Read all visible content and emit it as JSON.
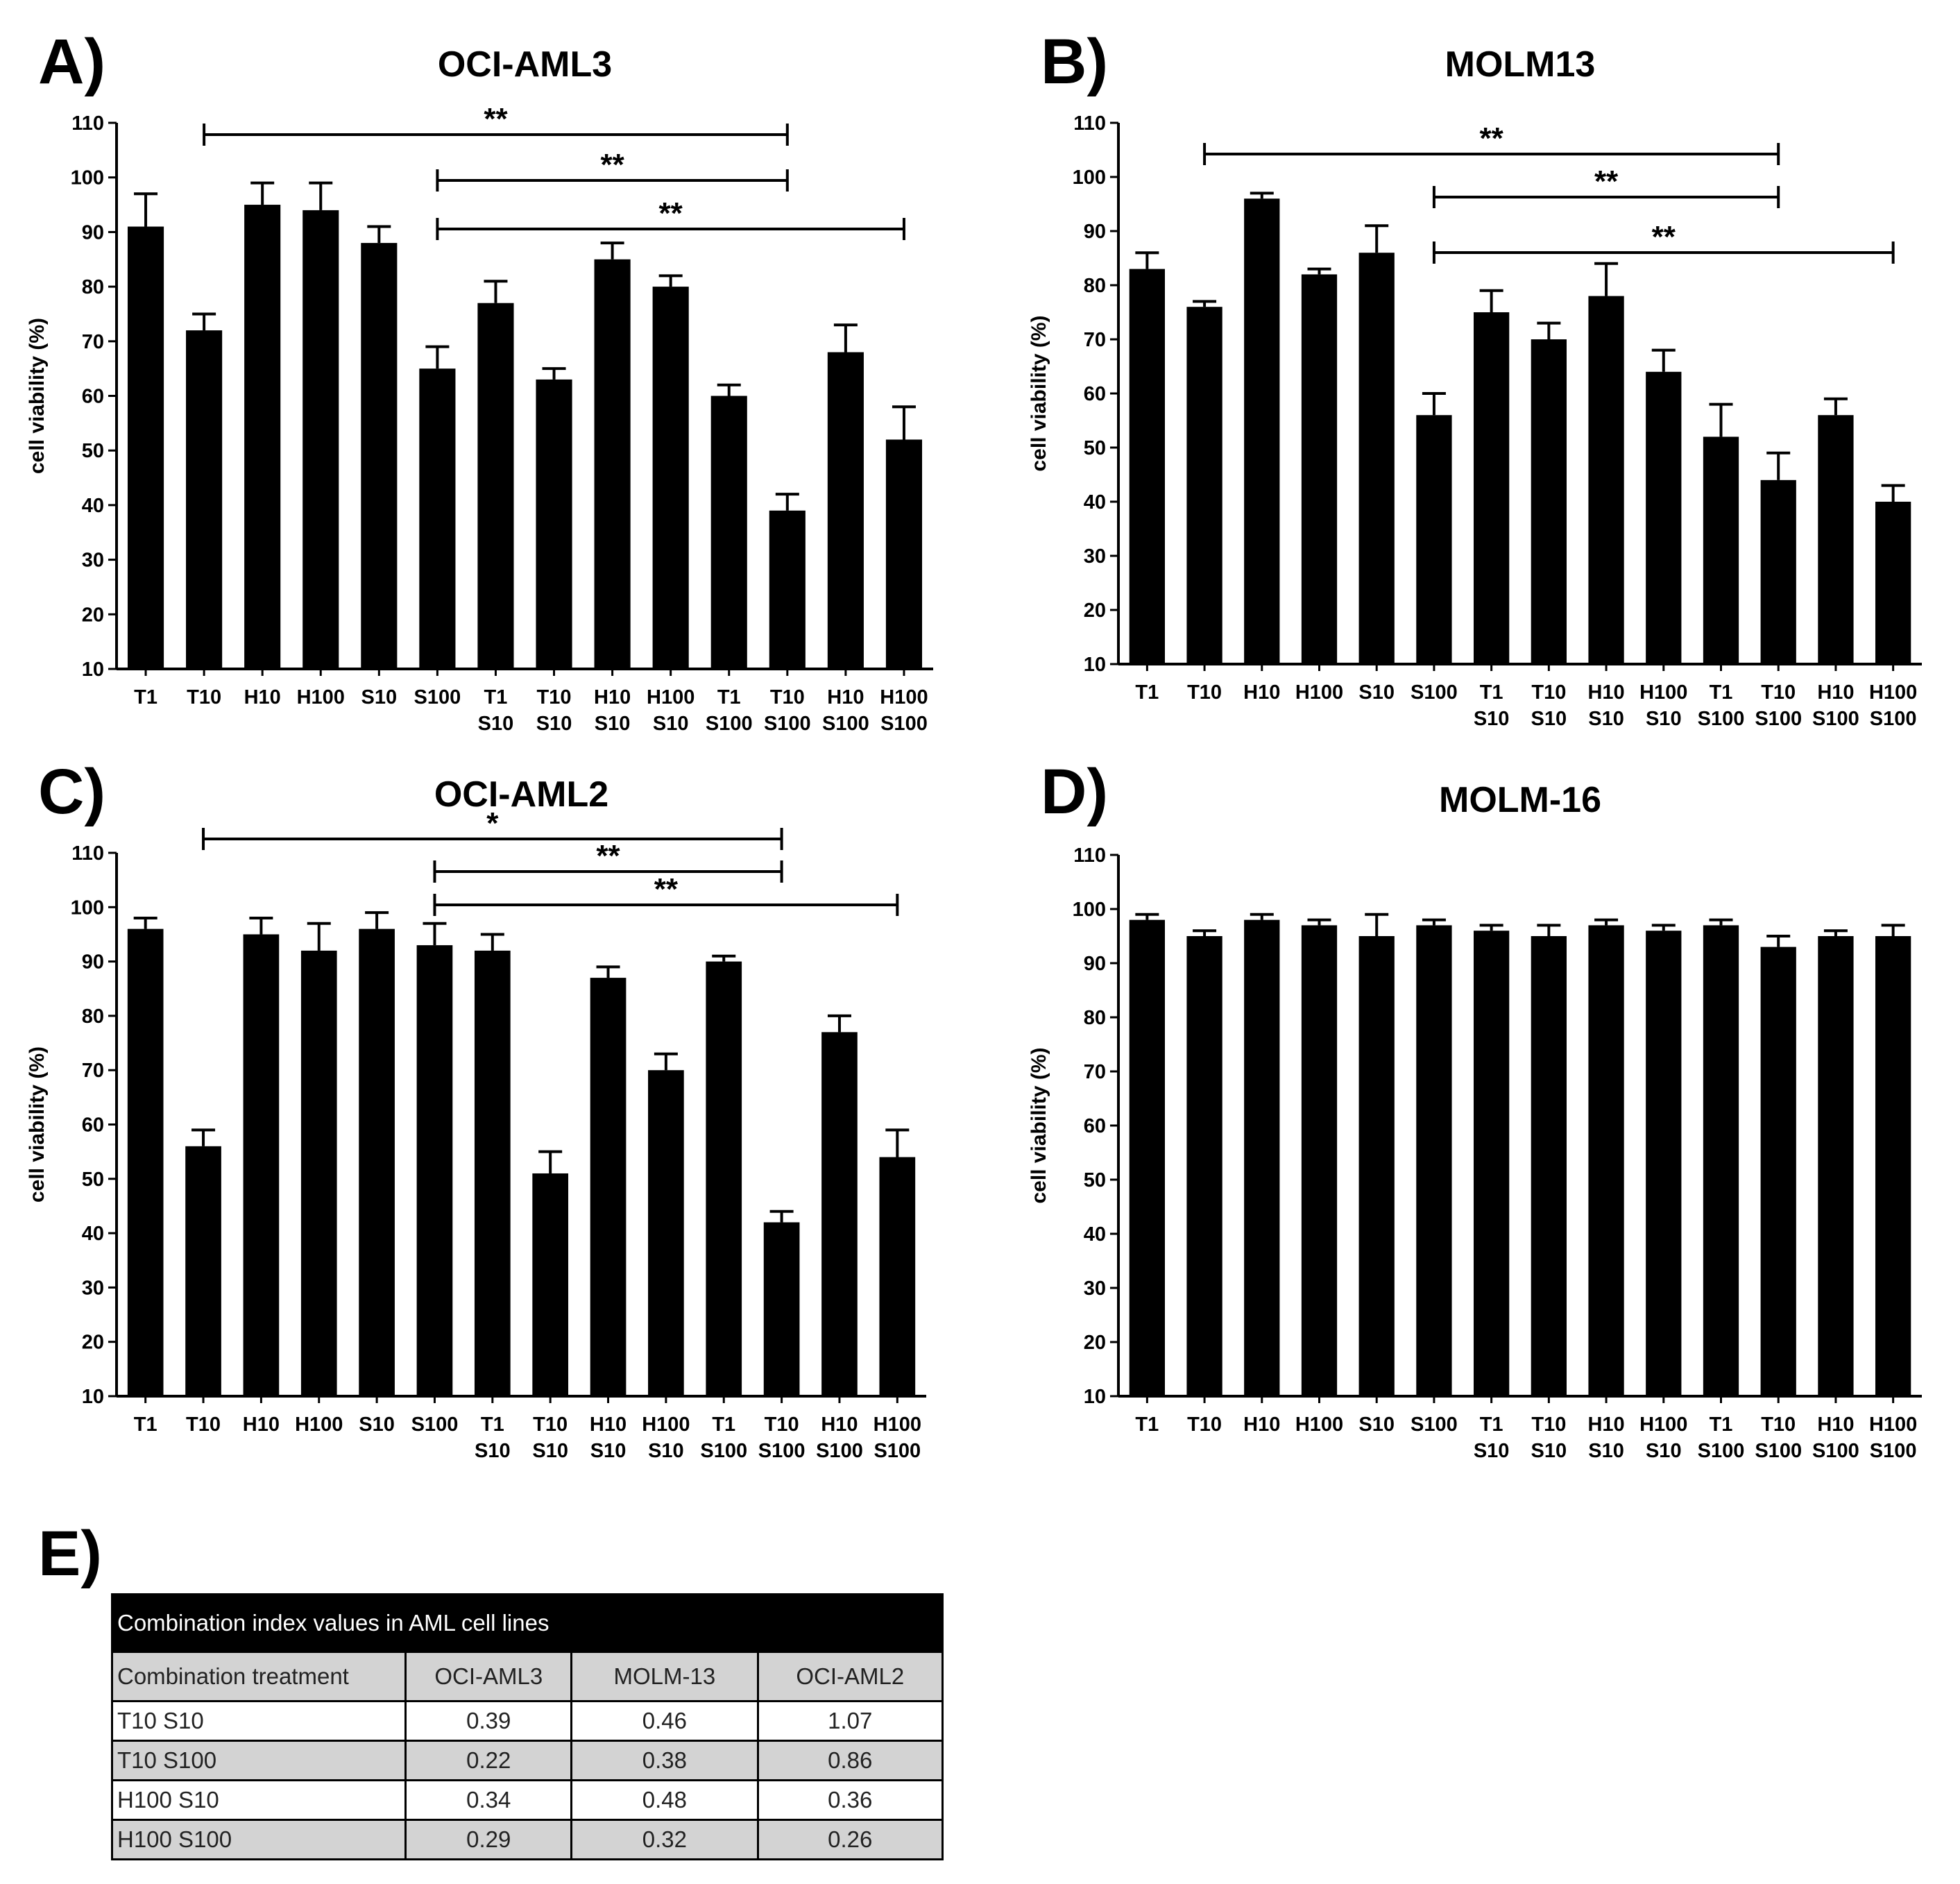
{
  "panel_letters": {
    "a": "A)",
    "b": "B)",
    "c": "C)",
    "d": "D)",
    "e": "E)"
  },
  "colors": {
    "bar": "#000000",
    "axis": "#000000",
    "table_header_bg": "#000000",
    "table_shade": "#d3d3d3"
  },
  "chart_data": [
    {
      "type": "bar",
      "panel": "A)",
      "title": "OCI-AML3",
      "ylabel": "cell viability (%)",
      "ylim": [
        10,
        110
      ],
      "yticks": [
        10,
        20,
        30,
        40,
        50,
        60,
        70,
        80,
        90,
        100,
        110
      ],
      "categories": [
        [
          "T1"
        ],
        [
          "T10"
        ],
        [
          "H10"
        ],
        [
          "H100"
        ],
        [
          "S10"
        ],
        [
          "S100"
        ],
        [
          "T1",
          "S10"
        ],
        [
          "T10",
          "S10"
        ],
        [
          "H10",
          "S10"
        ],
        [
          "H100",
          "S10"
        ],
        [
          "T1",
          "S100"
        ],
        [
          "T10",
          "S100"
        ],
        [
          "H10",
          "S100"
        ],
        [
          "H100",
          "S100"
        ]
      ],
      "values": [
        91,
        72,
        95,
        94,
        88,
        65,
        77,
        63,
        85,
        80,
        60,
        39,
        68,
        52
      ],
      "errors": [
        6,
        3,
        4,
        5,
        3,
        4,
        4,
        2,
        3,
        2,
        2,
        3,
        5,
        6
      ],
      "significance": [
        {
          "from": 1,
          "to": 11,
          "label": "**"
        },
        {
          "from": 5,
          "to": 11,
          "label": "**"
        },
        {
          "from": 5,
          "to": 13,
          "label": "**"
        }
      ]
    },
    {
      "type": "bar",
      "panel": "B)",
      "title": "MOLM13",
      "ylabel": "cell viability (%)",
      "ylim": [
        10,
        110
      ],
      "yticks": [
        10,
        20,
        30,
        40,
        50,
        60,
        70,
        80,
        90,
        100,
        110
      ],
      "categories": [
        [
          "T1"
        ],
        [
          "T10"
        ],
        [
          "H10"
        ],
        [
          "H100"
        ],
        [
          "S10"
        ],
        [
          "S100"
        ],
        [
          "T1",
          "S10"
        ],
        [
          "T10",
          "S10"
        ],
        [
          "H10",
          "S10"
        ],
        [
          "H100",
          "S10"
        ],
        [
          "T1",
          "S100"
        ],
        [
          "T10",
          "S100"
        ],
        [
          "H10",
          "S100"
        ],
        [
          "H100",
          "S100"
        ]
      ],
      "values": [
        83,
        76,
        96,
        82,
        86,
        56,
        75,
        70,
        78,
        64,
        52,
        44,
        56,
        40
      ],
      "errors": [
        3,
        1,
        1,
        1,
        5,
        4,
        4,
        3,
        6,
        4,
        6,
        5,
        3,
        3
      ],
      "significance": [
        {
          "from": 1,
          "to": 11,
          "label": "**"
        },
        {
          "from": 5,
          "to": 11,
          "label": "**"
        },
        {
          "from": 5,
          "to": 13,
          "label": "**"
        }
      ]
    },
    {
      "type": "bar",
      "panel": "C)",
      "title": "OCI-AML2",
      "ylabel": "cell viability (%)",
      "ylim": [
        10,
        110
      ],
      "yticks": [
        10,
        20,
        30,
        40,
        50,
        60,
        70,
        80,
        90,
        100,
        110
      ],
      "categories": [
        [
          "T1"
        ],
        [
          "T10"
        ],
        [
          "H10"
        ],
        [
          "H100"
        ],
        [
          "S10"
        ],
        [
          "S100"
        ],
        [
          "T1",
          "S10"
        ],
        [
          "T10",
          "S10"
        ],
        [
          "H10",
          "S10"
        ],
        [
          "H100",
          "S10"
        ],
        [
          "T1",
          "S100"
        ],
        [
          "T10",
          "S100"
        ],
        [
          "H10",
          "S100"
        ],
        [
          "H100",
          "S100"
        ]
      ],
      "values": [
        96,
        56,
        95,
        92,
        96,
        93,
        92,
        51,
        87,
        70,
        90,
        42,
        77,
        54
      ],
      "errors": [
        2,
        3,
        3,
        5,
        3,
        4,
        3,
        4,
        2,
        3,
        1,
        2,
        3,
        5
      ],
      "significance": [
        {
          "from": 1,
          "to": 11,
          "label": "*"
        },
        {
          "from": 5,
          "to": 11,
          "label": "**"
        },
        {
          "from": 5,
          "to": 13,
          "label": "**"
        }
      ]
    },
    {
      "type": "bar",
      "panel": "D)",
      "title": "MOLM-16",
      "ylabel": "cell viability (%)",
      "ylim": [
        10,
        110
      ],
      "yticks": [
        10,
        20,
        30,
        40,
        50,
        60,
        70,
        80,
        90,
        100,
        110
      ],
      "categories": [
        [
          "T1"
        ],
        [
          "T10"
        ],
        [
          "H10"
        ],
        [
          "H100"
        ],
        [
          "S10"
        ],
        [
          "S100"
        ],
        [
          "T1",
          "S10"
        ],
        [
          "T10",
          "S10"
        ],
        [
          "H10",
          "S10"
        ],
        [
          "H100",
          "S10"
        ],
        [
          "T1",
          "S100"
        ],
        [
          "T10",
          "S100"
        ],
        [
          "H10",
          "S100"
        ],
        [
          "H100",
          "S100"
        ]
      ],
      "values": [
        98,
        95,
        98,
        97,
        95,
        97,
        96,
        95,
        97,
        96,
        97,
        93,
        95,
        95
      ],
      "errors": [
        1,
        1,
        1,
        1,
        4,
        1,
        1,
        2,
        1,
        1,
        1,
        2,
        1,
        2
      ],
      "significance": []
    },
    {
      "type": "table",
      "panel": "E)",
      "title": "Combination index values in AML cell lines",
      "columns": [
        "Combination treatment",
        "OCI-AML3",
        "MOLM-13",
        "OCI-AML2"
      ],
      "rows": [
        [
          "T10   S10",
          "0.39",
          "0.46",
          "1.07"
        ],
        [
          "T10   S100",
          "0.22",
          "0.38",
          "0.86"
        ],
        [
          "H100 S10",
          "0.34",
          "0.48",
          "0.36"
        ],
        [
          "H100 S100",
          "0.29",
          "0.32",
          "0.26"
        ]
      ]
    }
  ]
}
